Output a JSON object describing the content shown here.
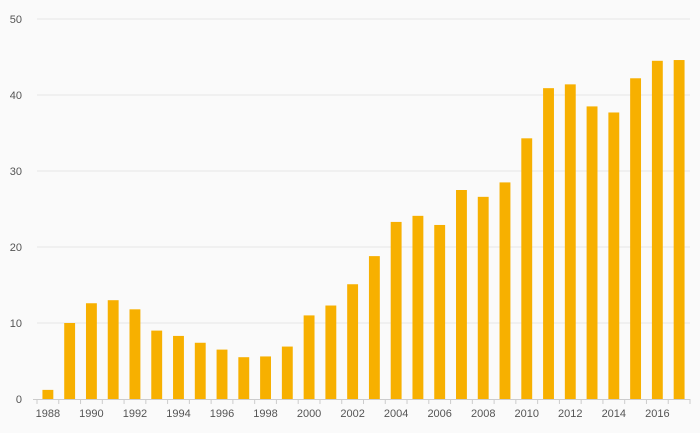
{
  "chart_data": {
    "type": "bar",
    "title": "",
    "xlabel": "",
    "ylabel": "",
    "ylim": [
      0,
      50
    ],
    "yticks": [
      0,
      10,
      20,
      30,
      40,
      50
    ],
    "grid": true,
    "legend": "none",
    "bar_color": "#f7b000",
    "categories": [
      "1988",
      "1989",
      "1990",
      "1991",
      "1992",
      "1993",
      "1994",
      "1995",
      "1996",
      "1997",
      "1998",
      "1999",
      "2000",
      "2001",
      "2002",
      "2003",
      "2004",
      "2005",
      "2006",
      "2007",
      "2008",
      "2009",
      "2010",
      "2011",
      "2012",
      "2013",
      "2014",
      "2015",
      "2016",
      "2017"
    ],
    "xtick_labels": [
      "1988",
      "1990",
      "1992",
      "1994",
      "1996",
      "1998",
      "2000",
      "2002",
      "2004",
      "2006",
      "2008",
      "2010",
      "2012",
      "2014",
      "2016"
    ],
    "values": [
      1.2,
      10.0,
      12.6,
      13.0,
      11.8,
      9.0,
      8.3,
      7.4,
      6.5,
      5.5,
      5.6,
      6.9,
      11.0,
      12.3,
      15.1,
      18.8,
      23.3,
      24.1,
      22.9,
      27.5,
      26.6,
      28.5,
      34.3,
      40.9,
      41.4,
      38.5,
      37.7,
      42.2,
      44.5,
      44.6
    ]
  }
}
